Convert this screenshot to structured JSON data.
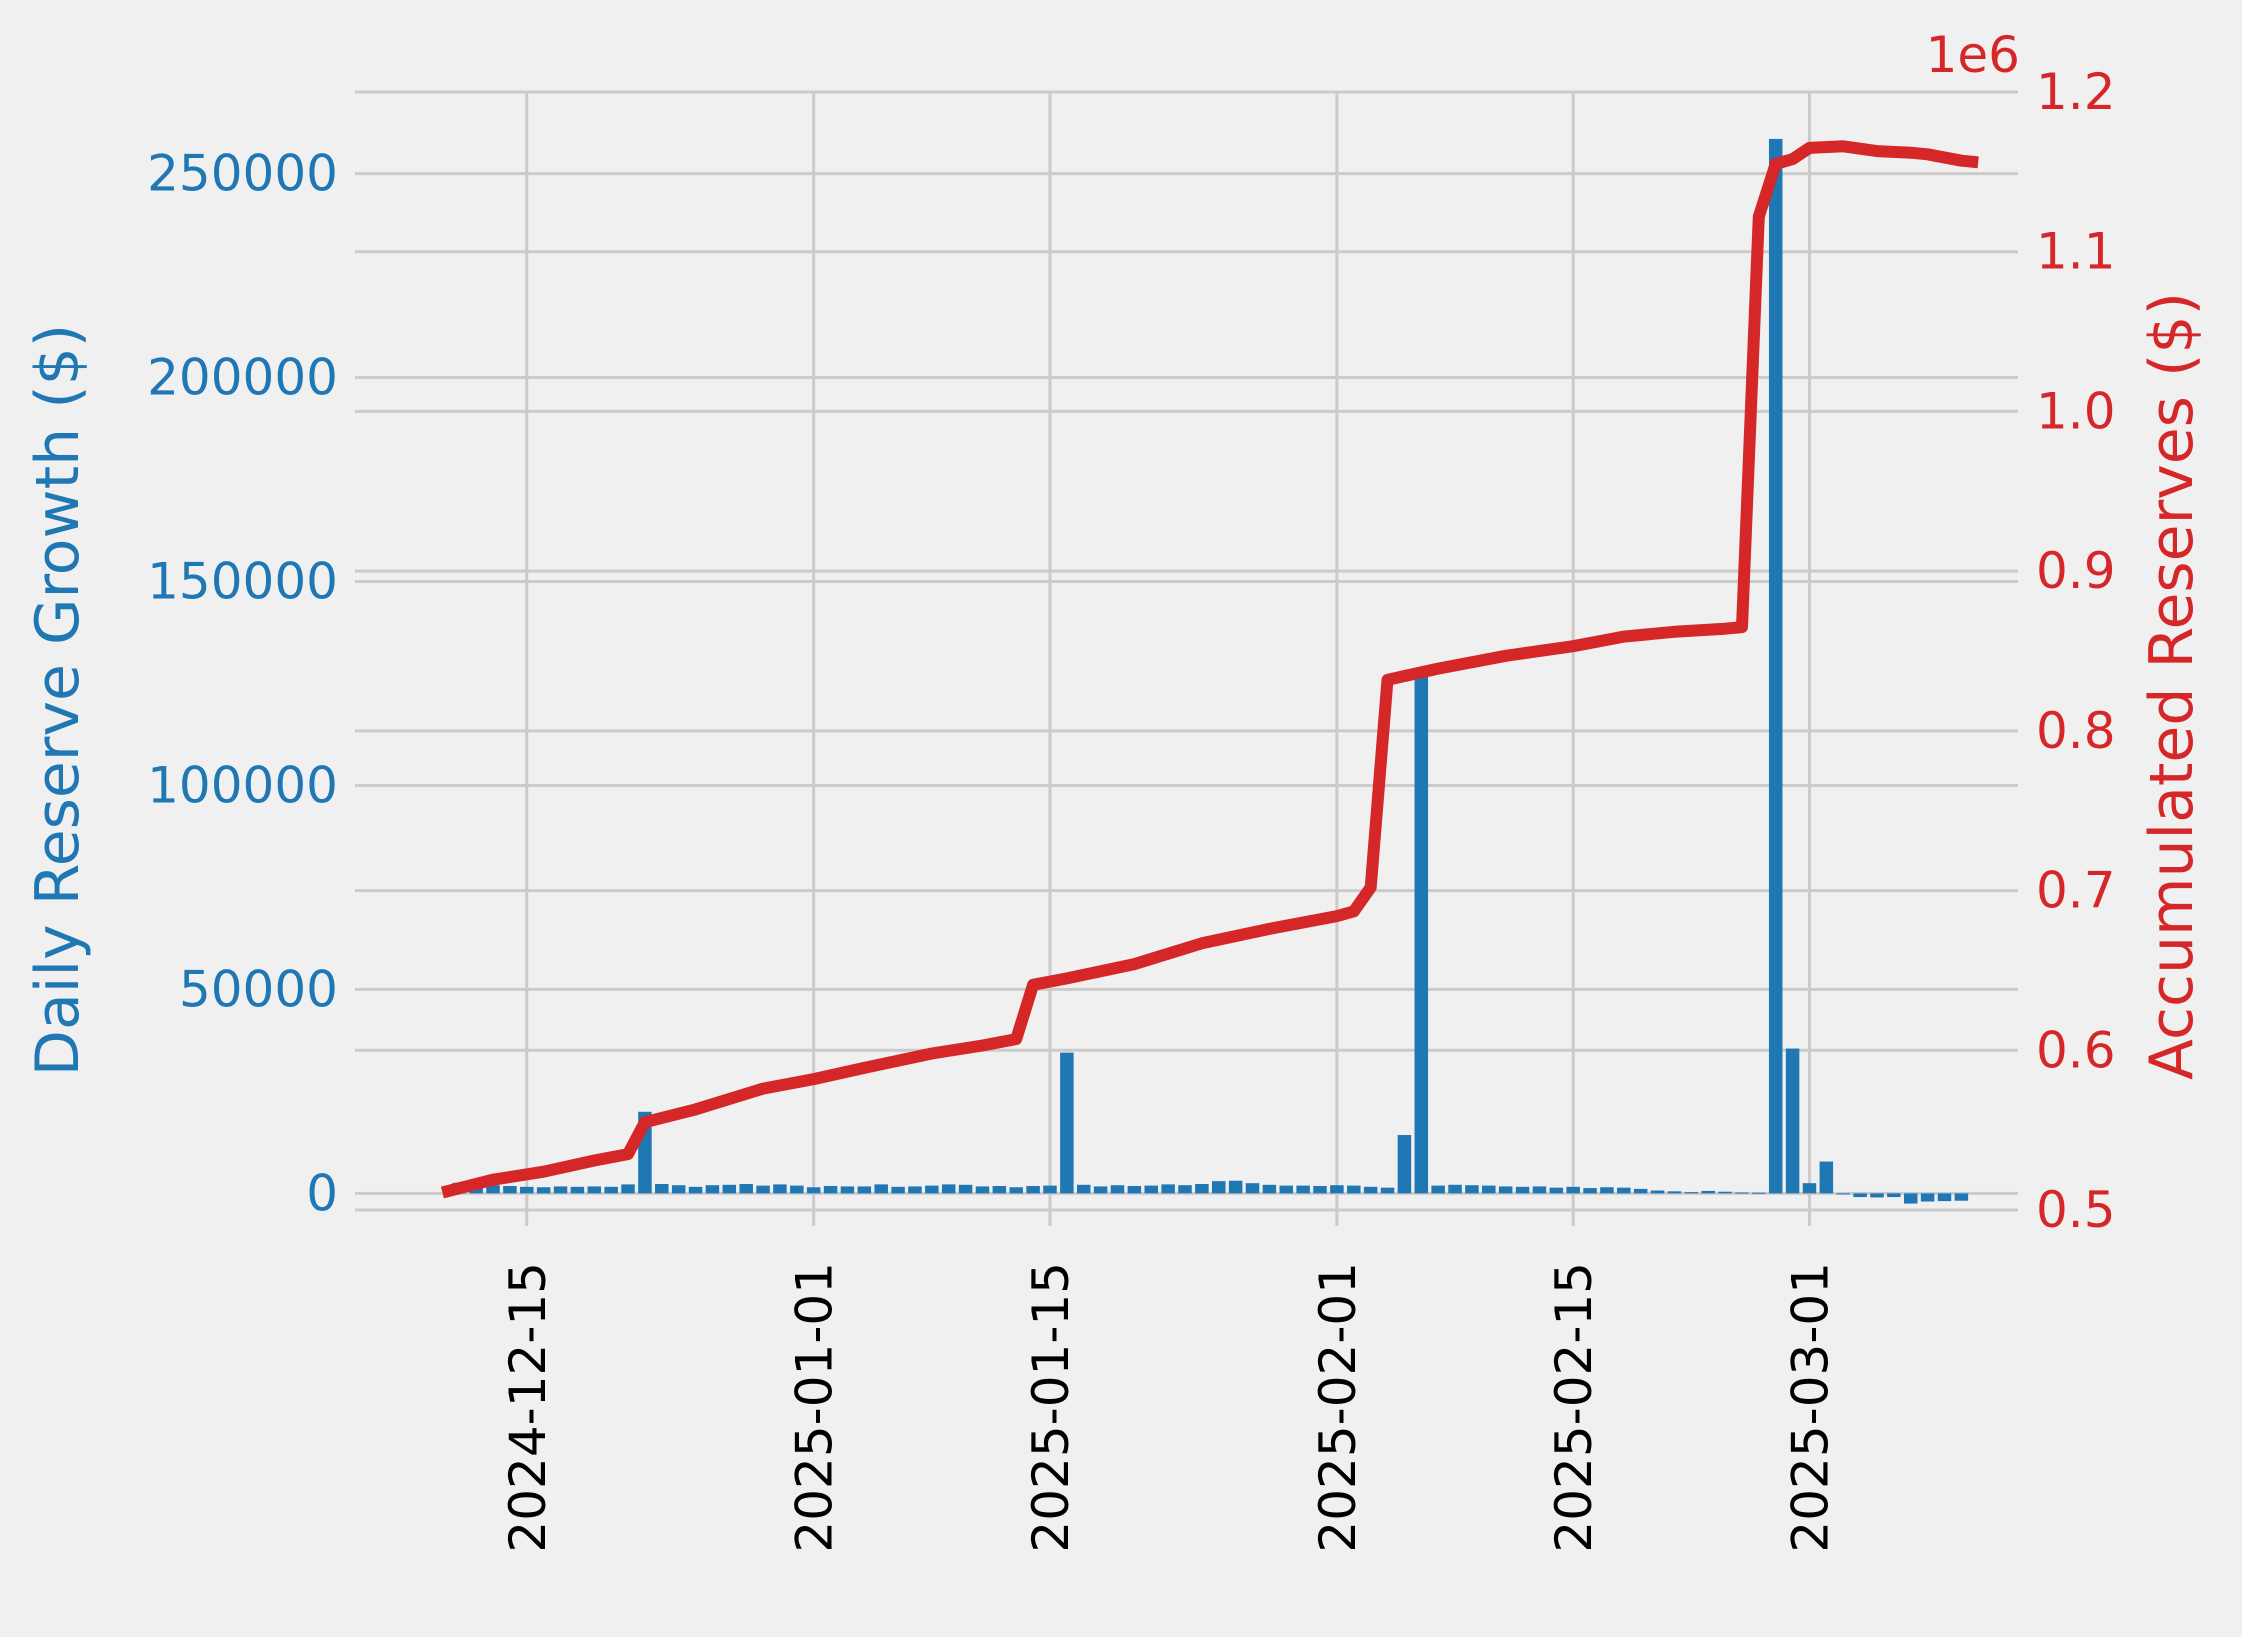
{
  "chart_data": {
    "type": "bar+line",
    "title": "",
    "colors": {
      "background": "#f0f0f0",
      "grid": "#cbcbcb",
      "bars": "#1f77b4",
      "line": "#d62728",
      "x_tick_text": "#000000"
    },
    "x_axis": {
      "type": "date",
      "range": [
        "2024-12-05",
        "2025-03-13"
      ],
      "tick_labels": [
        "2024-12-15",
        "2025-01-01",
        "2025-01-15",
        "2025-02-01",
        "2025-02-15",
        "2025-03-01"
      ]
    },
    "y_left": {
      "label": "Daily Reserve Growth ($)",
      "range": [
        -8000,
        270000
      ],
      "ticks": [
        0,
        50000,
        100000,
        150000,
        200000,
        250000
      ],
      "tick_labels": [
        "0",
        "50000",
        "100000",
        "150000",
        "200000",
        "250000"
      ]
    },
    "y_right": {
      "label": "Accumulated Reserves ($)",
      "offset_label": "1e6",
      "range": [
        0.49,
        1.2
      ],
      "ticks": [
        0.5,
        0.6,
        0.7,
        0.8,
        0.9,
        1.0,
        1.1,
        1.2
      ],
      "tick_labels": [
        "0.5",
        "0.6",
        "0.7",
        "0.8",
        "0.9",
        "1.0",
        "1.1",
        "1.2"
      ]
    },
    "bar_series": {
      "name": "Daily Reserve Growth ($)",
      "start_date": "2024-12-10",
      "values": [
        0,
        2600,
        2800,
        2000,
        1800,
        1600,
        1500,
        1700,
        1600,
        1700,
        1600,
        2200,
        20000,
        2300,
        2000,
        1600,
        2000,
        2100,
        2300,
        1900,
        2200,
        1900,
        1500,
        1800,
        1700,
        1700,
        2200,
        1600,
        1700,
        1900,
        2200,
        2100,
        1700,
        1800,
        1500,
        1800,
        1900,
        34500,
        2100,
        1700,
        2000,
        1800,
        1900,
        2200,
        2000,
        2300,
        3000,
        3100,
        2500,
        2100,
        1900,
        1900,
        1800,
        2000,
        1900,
        1600,
        1400,
        14300,
        128800,
        1900,
        2100,
        2000,
        1900,
        1700,
        1600,
        1700,
        1400,
        1600,
        1300,
        1500,
        1400,
        1100,
        700,
        500,
        300,
        600,
        400,
        200,
        150,
        258500,
        35500,
        2500,
        7800,
        -200,
        -900,
        -1000,
        -900,
        -2500,
        -2000,
        -1900,
        -1800
      ]
    },
    "line_series": {
      "name": "Accumulated Reserves ($)",
      "points": [
        [
          "2024-12-10",
          0.511
        ],
        [
          "2024-12-13",
          0.519
        ],
        [
          "2024-12-16",
          0.524
        ],
        [
          "2024-12-19",
          0.531
        ],
        [
          "2024-12-21",
          0.535
        ],
        [
          "2024-12-22",
          0.555
        ],
        [
          "2024-12-25",
          0.563
        ],
        [
          "2024-12-29",
          0.576
        ],
        [
          "2025-01-01",
          0.582
        ],
        [
          "2025-01-04",
          0.589
        ],
        [
          "2025-01-08",
          0.598
        ],
        [
          "2025-01-11",
          0.603
        ],
        [
          "2025-01-13",
          0.607
        ],
        [
          "2025-01-14",
          0.641
        ],
        [
          "2025-01-16",
          0.645
        ],
        [
          "2025-01-20",
          0.654
        ],
        [
          "2025-01-24",
          0.667
        ],
        [
          "2025-01-28",
          0.676
        ],
        [
          "2025-02-01",
          0.684
        ],
        [
          "2025-02-02",
          0.687
        ],
        [
          "2025-02-03",
          0.702
        ],
        [
          "2025-02-04",
          0.832
        ],
        [
          "2025-02-07",
          0.839
        ],
        [
          "2025-02-11",
          0.847
        ],
        [
          "2025-02-15",
          0.853
        ],
        [
          "2025-02-18",
          0.859
        ],
        [
          "2025-02-21",
          0.862
        ],
        [
          "2025-02-24",
          0.864
        ],
        [
          "2025-02-25",
          0.865
        ],
        [
          "2025-02-26",
          1.122
        ],
        [
          "2025-02-27",
          1.155
        ],
        [
          "2025-02-28",
          1.158
        ],
        [
          "2025-03-01",
          1.165
        ],
        [
          "2025-03-03",
          1.166
        ],
        [
          "2025-03-05",
          1.163
        ],
        [
          "2025-03-07",
          1.162
        ],
        [
          "2025-03-08",
          1.161
        ],
        [
          "2025-03-10",
          1.157
        ],
        [
          "2025-03-11",
          1.156
        ]
      ]
    },
    "grid": true,
    "legend": "none"
  }
}
